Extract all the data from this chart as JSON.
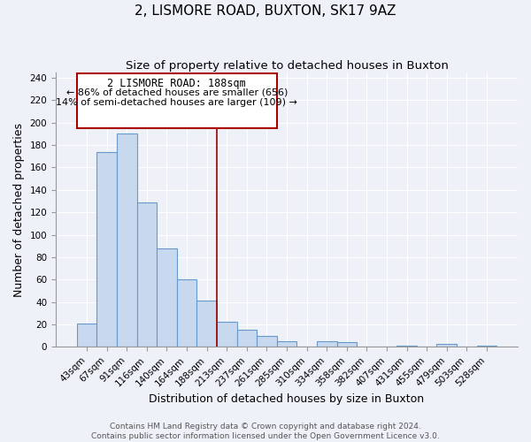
{
  "title": "2, LISMORE ROAD, BUXTON, SK17 9AZ",
  "subtitle": "Size of property relative to detached houses in Buxton",
  "xlabel": "Distribution of detached houses by size in Buxton",
  "ylabel": "Number of detached properties",
  "bar_labels": [
    "43sqm",
    "67sqm",
    "91sqm",
    "116sqm",
    "140sqm",
    "164sqm",
    "188sqm",
    "213sqm",
    "237sqm",
    "261sqm",
    "285sqm",
    "310sqm",
    "334sqm",
    "358sqm",
    "382sqm",
    "407sqm",
    "431sqm",
    "455sqm",
    "479sqm",
    "503sqm",
    "528sqm"
  ],
  "bar_values": [
    21,
    174,
    190,
    129,
    88,
    60,
    41,
    22,
    15,
    10,
    5,
    0,
    5,
    4,
    0,
    0,
    1,
    0,
    3,
    0,
    1
  ],
  "bar_color": "#c8d8ee",
  "bar_edge_color": "#6699cc",
  "highlight_index": 6,
  "highlight_line_color": "#990000",
  "ylim": [
    0,
    245
  ],
  "yticks": [
    0,
    20,
    40,
    60,
    80,
    100,
    120,
    140,
    160,
    180,
    200,
    220,
    240
  ],
  "annotation_title": "2 LISMORE ROAD: 188sqm",
  "annotation_line1": "← 86% of detached houses are smaller (656)",
  "annotation_line2": "14% of semi-detached houses are larger (109) →",
  "annotation_box_color": "#ffffff",
  "annotation_box_edge": "#aa0000",
  "footer_line1": "Contains HM Land Registry data © Crown copyright and database right 2024.",
  "footer_line2": "Contains public sector information licensed under the Open Government Licence v3.0.",
  "background_color": "#eef2f8",
  "grid_color": "#ffffff",
  "title_fontsize": 11,
  "subtitle_fontsize": 9.5,
  "axis_label_fontsize": 9,
  "tick_fontsize": 7.5,
  "footer_fontsize": 6.5
}
